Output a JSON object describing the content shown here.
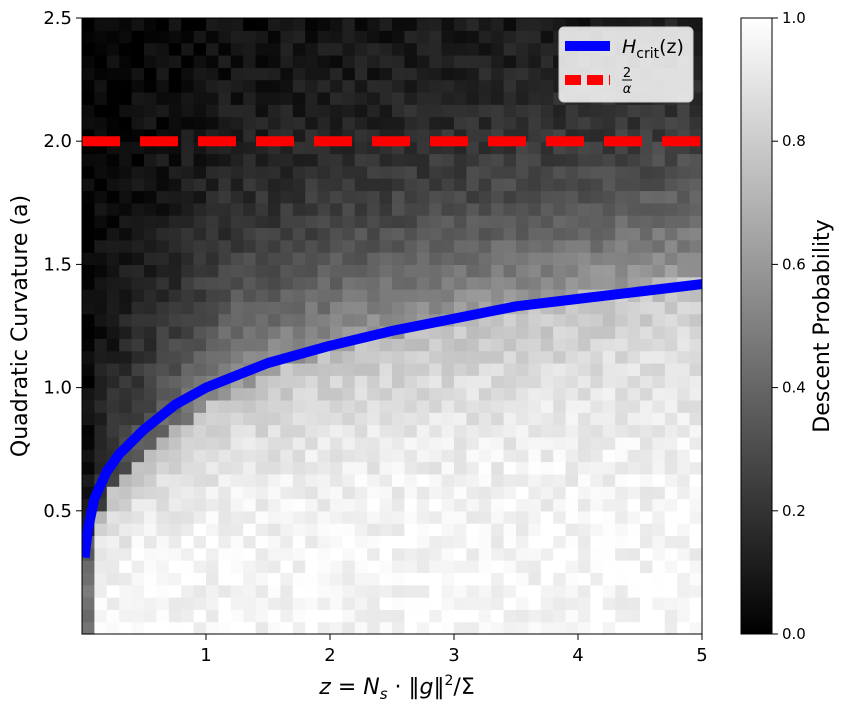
{
  "chart_data": {
    "type": "heatmap",
    "title": "",
    "xlabel": "z = N_s · ‖g‖²/Σ",
    "ylabel": "Quadratic Curvature (a)",
    "xlim": [
      0.0,
      5.0
    ],
    "ylim": [
      0.0,
      2.5
    ],
    "xticks": [
      "1",
      "2",
      "3",
      "4",
      "5"
    ],
    "xtick_values": [
      1,
      2,
      3,
      4,
      5
    ],
    "yticks": [
      "0.5",
      "1.0",
      "1.5",
      "2.0",
      "2.5"
    ],
    "ytick_values": [
      0.5,
      1.0,
      1.5,
      2.0,
      2.5
    ],
    "grid": false,
    "heatmap": {
      "description_quantity": "Descent Probability",
      "x_bins": 50,
      "y_bins": 50,
      "colormap": "gray",
      "value_range": [
        0.0,
        1.0
      ]
    },
    "colorbar": {
      "label": "Descent Probability",
      "ticks": [
        "0.0",
        "0.2",
        "0.4",
        "0.6",
        "0.8",
        "1.0"
      ],
      "tick_values": [
        0.0,
        0.2,
        0.4,
        0.6,
        0.8,
        1.0
      ],
      "range": [
        0.0,
        1.0
      ]
    },
    "legend": {
      "placement": "top-right",
      "entries": [
        {
          "label_main": "H",
          "label_sub": "crit",
          "label_tail": "(z)",
          "color": "#0000ff",
          "style": "solid"
        },
        {
          "label_num": "2",
          "label_den": "α",
          "color": "#ff0000",
          "style": "dashed"
        }
      ]
    },
    "series": [
      {
        "type": "line",
        "color": "#0000ff",
        "style": "solid",
        "x": [
          0.02,
          0.05,
          0.1,
          0.2,
          0.3,
          0.5,
          0.75,
          1.0,
          1.5,
          2.0,
          2.5,
          3.0,
          3.5,
          4.0,
          4.5,
          5.0
        ],
        "y": [
          0.31,
          0.43,
          0.55,
          0.66,
          0.73,
          0.83,
          0.93,
          1.0,
          1.1,
          1.17,
          1.23,
          1.28,
          1.33,
          1.36,
          1.39,
          1.42
        ]
      },
      {
        "type": "hline",
        "color": "#ff0000",
        "style": "dashed",
        "y": 2.0
      }
    ]
  }
}
